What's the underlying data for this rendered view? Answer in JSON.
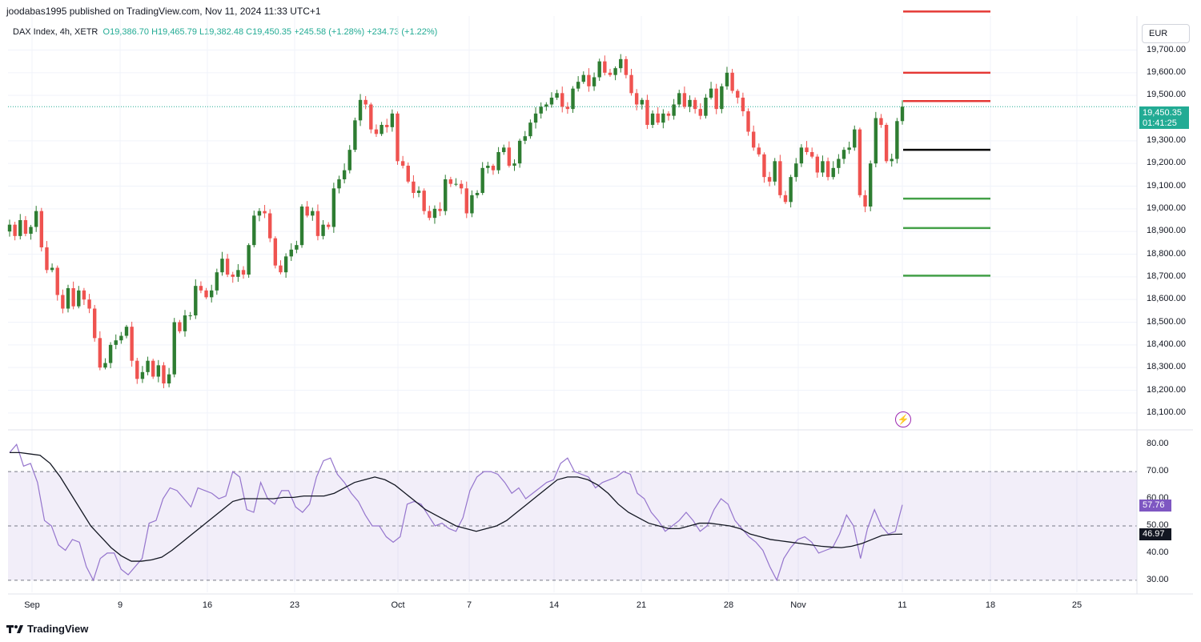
{
  "header": {
    "published": "joodabas1995 published on TradingView.com, Nov 11, 2024 11:33 UTC+1",
    "symbol": "DAX Index, 4h, XETR",
    "open": "O19,386.70",
    "high": "H19,465.79",
    "low": "L19,382.48",
    "close": "C19,450.35",
    "change": "+245.58 (+1.28%)",
    "change2": "+234.73 (+1.22%)"
  },
  "currency": "EUR",
  "price_tag": {
    "price": "19,450.35",
    "timer": "01:41:25",
    "color": "#22ab94"
  },
  "rsi_tags": {
    "rsi": "57.76",
    "ma": "46.97",
    "rsi_color": "#7e57c2",
    "ma_color": "#131722"
  },
  "footer": {
    "logo_text": "TradingView"
  },
  "icons": {
    "alert": "bolt-icon",
    "logo": "tradingview-logo-icon"
  },
  "chart_data": [
    {
      "type": "candlestick",
      "timeframe": "4h",
      "ylim": [
        18050,
        19850
      ],
      "y_ticks": [
        "19,700.00",
        "19,600.00",
        "19,500.00",
        "19,300.00",
        "19,200.00",
        "19,100.00",
        "19,000.00",
        "18,900.00",
        "18,800.00",
        "18,700.00",
        "18,600.00",
        "18,500.00",
        "18,400.00",
        "18,300.00",
        "18,200.00",
        "18,100.00"
      ],
      "x_ticks": [
        "Sep",
        "9",
        "16",
        "23",
        "Oct",
        "7",
        "14",
        "21",
        "28",
        "Nov",
        "11",
        "18",
        "25"
      ],
      "last_price": 19450.35,
      "levels": {
        "resistance": [
          19870,
          19600,
          19475
        ],
        "pivot": 19260,
        "support": [
          19045,
          18915,
          18705
        ],
        "colors": {
          "resistance": "#e53935",
          "pivot": "#000000",
          "support": "#43a047"
        }
      },
      "candle_colors": {
        "up": "#2e7d32",
        "down": "#ef5350"
      },
      "path": [
        18900,
        18930,
        18880,
        18950,
        18890,
        18920,
        18990,
        18830,
        18730,
        18740,
        18620,
        18560,
        18650,
        18570,
        18640,
        18600,
        18560,
        18430,
        18300,
        18320,
        18400,
        18420,
        18440,
        18480,
        18330,
        18250,
        18280,
        18330,
        18260,
        18310,
        18230,
        18270,
        18500,
        18460,
        18530,
        18530,
        18660,
        18640,
        18610,
        18640,
        18720,
        18780,
        18710,
        18700,
        18730,
        18710,
        18840,
        18970,
        18990,
        18980,
        18870,
        18750,
        18720,
        18790,
        18820,
        18840,
        19010,
        18970,
        18990,
        18880,
        18930,
        18920,
        19090,
        19130,
        19170,
        19260,
        19390,
        19480,
        19460,
        19350,
        19330,
        19370,
        19360,
        19420,
        19210,
        19190,
        19120,
        19070,
        19080,
        18990,
        18960,
        19000,
        18990,
        19130,
        19110,
        19110,
        19090,
        18980,
        19060,
        19070,
        19180,
        19190,
        19170,
        19250,
        19270,
        19190,
        19200,
        19300,
        19320,
        19380,
        19420,
        19450,
        19460,
        19490,
        19510,
        19450,
        19440,
        19530,
        19560,
        19590,
        19540,
        19580,
        19650,
        19600,
        19590,
        19620,
        19660,
        19590,
        19510,
        19460,
        19480,
        19370,
        19420,
        19380,
        19420,
        19410,
        19460,
        19510,
        19450,
        19480,
        19440,
        19410,
        19490,
        19530,
        19440,
        19540,
        19600,
        19520,
        19490,
        19430,
        19340,
        19270,
        19240,
        19140,
        19120,
        19210,
        19060,
        19030,
        19140,
        19200,
        19270,
        19250,
        19230,
        19160,
        19210,
        19140,
        19180,
        19220,
        19260,
        19270,
        19350,
        19060,
        19010,
        19200,
        19400,
        19370,
        19210,
        19220,
        19386.7,
        19450.35
      ]
    },
    {
      "type": "line",
      "title": "",
      "ylim": [
        27,
        83
      ],
      "y_ticks": [
        "80.00",
        "70.00",
        "60.00",
        "50.00",
        "40.00",
        "30.00"
      ],
      "bands": {
        "upper": 70,
        "middle": 50,
        "lower": 30
      },
      "series": [
        {
          "name": "",
          "color": "#9575cd",
          "values": [
            77,
            80,
            72,
            73,
            66,
            52,
            50,
            43,
            41,
            45,
            44,
            35,
            30,
            38,
            40,
            40,
            34,
            32,
            35,
            38,
            51,
            52,
            60,
            64,
            63,
            60,
            57,
            64,
            63,
            62,
            60,
            61,
            70,
            68,
            56,
            55,
            66,
            60,
            58,
            63,
            63,
            57,
            55,
            58,
            68,
            74,
            75,
            69,
            66,
            62,
            59,
            54,
            50,
            50,
            46,
            44,
            46,
            58,
            59,
            58,
            54,
            50,
            51,
            49,
            48,
            53,
            63,
            68,
            70,
            70,
            69,
            66,
            62,
            64,
            60,
            62,
            64,
            66,
            67,
            73,
            75,
            70,
            69,
            68,
            64,
            66,
            67,
            68,
            70,
            69,
            62,
            60,
            55,
            52,
            48,
            50,
            52,
            55,
            52,
            48,
            50,
            56,
            60,
            58,
            52,
            49,
            46,
            44,
            41,
            35,
            30,
            38,
            42,
            45,
            46,
            44,
            40,
            41,
            42,
            47,
            54,
            50,
            38,
            49,
            56,
            50,
            47,
            48,
            57.76
          ]
        },
        {
          "name": "",
          "color": "#131722",
          "values": [
            77,
            77,
            76.5,
            76,
            73,
            68,
            62,
            56,
            50,
            46,
            42,
            39,
            37,
            37,
            37.5,
            38.5,
            41,
            44,
            47,
            50,
            53,
            56,
            59,
            60,
            60,
            60,
            60,
            60.5,
            60.5,
            61,
            61,
            61,
            62,
            64,
            66,
            67,
            68,
            67,
            65,
            62,
            59,
            56,
            54,
            52,
            50,
            49,
            48,
            49,
            50,
            52,
            55,
            58,
            61,
            64,
            67,
            68,
            68,
            67,
            65,
            62,
            58,
            55,
            53,
            51,
            50,
            49,
            49,
            50,
            51,
            51,
            50.5,
            50,
            49,
            47,
            46,
            45,
            44.5,
            44,
            43.5,
            43,
            42.5,
            42.2,
            42,
            42.5,
            43.5,
            45,
            46.5,
            46.9,
            46.97
          ]
        }
      ]
    }
  ]
}
